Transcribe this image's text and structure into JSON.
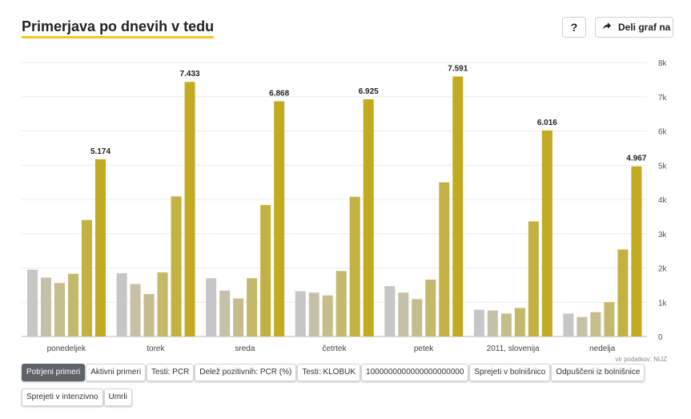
{
  "header": {
    "title": "Primerjava po dnevih v tedu",
    "help_label": "?",
    "share_label": "Deli graf na"
  },
  "source": "vir podatkov: NIJZ",
  "tabs": [
    {
      "label": "Potrjeni primeri",
      "active": true
    },
    {
      "label": "Aktivni primeri",
      "active": false
    },
    {
      "label": "Testi: PCR",
      "active": false
    },
    {
      "label": "Delež pozitivnih: PCR (%)",
      "active": false
    },
    {
      "label": "Testi: KLOBUK",
      "active": false
    },
    {
      "label": "1000000000000000000000",
      "active": false
    },
    {
      "label": "Sprejeti v bolnišnico",
      "active": false
    },
    {
      "label": "Odpuščeni iz bolnišnice",
      "active": false
    },
    {
      "label": "Sprejeti v intenzivno",
      "active": false
    },
    {
      "label": "Umrli",
      "active": false
    }
  ],
  "chart_data": {
    "type": "bar",
    "categories": [
      "ponedeljek",
      "torek",
      "sreda",
      "četrtek",
      "petek",
      "2011, slovenija",
      "nedelja"
    ],
    "series": [
      {
        "values": [
          1950,
          1850,
          1700,
          1320,
          1470,
          780,
          670
        ],
        "color": "#c6c6c6"
      },
      {
        "values": [
          1720,
          1530,
          1340,
          1280,
          1280,
          760,
          570
        ],
        "color": "#c5c1a8"
      },
      {
        "values": [
          1560,
          1240,
          1110,
          1200,
          1090,
          670,
          710
        ],
        "color": "#c5bd8b"
      },
      {
        "values": [
          1830,
          1870,
          1700,
          1910,
          1660,
          830,
          1000
        ],
        "color": "#c4b86b"
      },
      {
        "values": [
          3400,
          4090,
          3840,
          4080,
          4500,
          3360,
          2540
        ],
        "color": "#c3b144"
      },
      {
        "values": [
          5174,
          7433,
          6868,
          6925,
          7591,
          6016,
          4967
        ],
        "color": "#c2aa22"
      }
    ],
    "data_labels": [
      "5.174",
      "7.433",
      "6.868",
      "6.925",
      "7.591",
      "6.016",
      "4.967"
    ],
    "y_ticks": [
      "0",
      "1k",
      "2k",
      "3k",
      "4k",
      "5k",
      "6k",
      "7k",
      "8k"
    ],
    "ylim": [
      0,
      8000
    ],
    "y_axis_position": "right",
    "grid": true,
    "xlabel": "",
    "ylabel": "",
    "title": ""
  }
}
